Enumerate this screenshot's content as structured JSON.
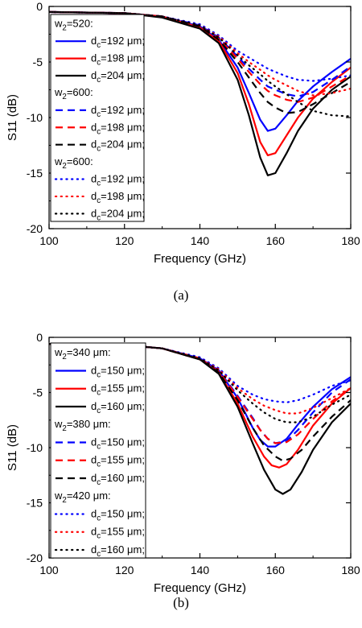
{
  "chart_data": [
    {
      "type": "line",
      "caption": "(a)",
      "xlabel": "Frequency (GHz)",
      "ylabel": "S11 (dB)",
      "xlim": [
        100,
        180
      ],
      "ylim": [
        -20,
        0
      ],
      "xticks": [
        100,
        120,
        140,
        160,
        180
      ],
      "yticks": [
        0,
        -5,
        -10,
        -15,
        -20
      ],
      "grid": false,
      "legend_position": "left",
      "legend_groups": [
        {
          "title": "w2=520:",
          "title_main": "w",
          "title_sub": "2",
          "title_rest": "=520:"
        },
        {
          "title": "w2=600:",
          "title_main": "w",
          "title_sub": "2",
          "title_rest": "=600:"
        },
        {
          "title": "w2=600:",
          "title_main": "w",
          "title_sub": "2",
          "title_rest": "=600:"
        }
      ],
      "series": [
        {
          "name": "dc=192 μm;",
          "label_main": "d",
          "label_sub": "c",
          "label_rest": "=192 μm;",
          "group": 0,
          "color": "#0000ff",
          "dash": "solid",
          "x": [
            100,
            120,
            130,
            140,
            145,
            150,
            153,
            156,
            158,
            160,
            163,
            166,
            170,
            175,
            180
          ],
          "y": [
            -0.5,
            -0.6,
            -0.9,
            -1.8,
            -3.0,
            -5.5,
            -7.8,
            -10.2,
            -11.2,
            -11.0,
            -9.8,
            -8.5,
            -7.2,
            -5.9,
            -4.7
          ]
        },
        {
          "name": "dc=198 μm;",
          "label_main": "d",
          "label_sub": "c",
          "label_rest": "=198 μm;",
          "group": 0,
          "color": "#ff0000",
          "dash": "solid",
          "x": [
            100,
            120,
            130,
            140,
            145,
            150,
            153,
            156,
            158,
            160,
            163,
            166,
            170,
            175,
            180
          ],
          "y": [
            -0.5,
            -0.6,
            -0.9,
            -1.9,
            -3.1,
            -6.0,
            -8.8,
            -12.2,
            -13.4,
            -13.2,
            -11.6,
            -10.0,
            -8.3,
            -6.8,
            -5.5
          ]
        },
        {
          "name": "dc=204 μm;",
          "label_main": "d",
          "label_sub": "c",
          "label_rest": "=204 μm;",
          "group": 0,
          "color": "#000000",
          "dash": "solid",
          "x": [
            100,
            120,
            130,
            140,
            145,
            150,
            153,
            156,
            158,
            160,
            163,
            166,
            170,
            175,
            180
          ],
          "y": [
            -0.5,
            -0.6,
            -1.0,
            -2.0,
            -3.3,
            -6.6,
            -9.8,
            -13.6,
            -15.2,
            -15.0,
            -13.2,
            -11.2,
            -9.2,
            -7.5,
            -6.3
          ]
        },
        {
          "name": "dc=192 μm;",
          "label_main": "d",
          "label_sub": "c",
          "label_rest": "=192 μm;",
          "group": 1,
          "color": "#0000ff",
          "dash": "dashed",
          "x": [
            100,
            120,
            130,
            140,
            145,
            150,
            153,
            156,
            158,
            160,
            163,
            166,
            170,
            175,
            180
          ],
          "y": [
            -0.5,
            -0.6,
            -0.9,
            -1.7,
            -2.8,
            -4.5,
            -5.6,
            -6.6,
            -7.2,
            -7.5,
            -7.9,
            -8.1,
            -7.7,
            -6.6,
            -5.4
          ]
        },
        {
          "name": "dc=198 μm;",
          "label_main": "d",
          "label_sub": "c",
          "label_rest": "=198 μm;",
          "group": 1,
          "color": "#ff0000",
          "dash": "dashed",
          "x": [
            100,
            120,
            130,
            140,
            145,
            150,
            153,
            156,
            158,
            160,
            163,
            166,
            170,
            175,
            180
          ],
          "y": [
            -0.5,
            -0.6,
            -0.9,
            -1.8,
            -2.9,
            -4.7,
            -5.9,
            -7.0,
            -7.6,
            -8.0,
            -8.4,
            -8.6,
            -8.2,
            -7.2,
            -6.2
          ]
        },
        {
          "name": "dc=204 μm;",
          "label_main": "d",
          "label_sub": "c",
          "label_rest": "=204 μm;",
          "group": 1,
          "color": "#000000",
          "dash": "dashed",
          "x": [
            100,
            120,
            130,
            140,
            145,
            150,
            153,
            156,
            158,
            160,
            163,
            166,
            170,
            175,
            180
          ],
          "y": [
            -0.5,
            -0.6,
            -0.9,
            -1.8,
            -3.0,
            -5.0,
            -6.4,
            -7.8,
            -8.6,
            -9.1,
            -9.6,
            -9.5,
            -8.8,
            -7.8,
            -6.8
          ]
        },
        {
          "name": "dc=192 μm;",
          "label_main": "d",
          "label_sub": "c",
          "label_rest": "=192 μm;",
          "group": 2,
          "color": "#0000ff",
          "dash": "dotted",
          "x": [
            100,
            120,
            130,
            140,
            145,
            150,
            153,
            156,
            158,
            160,
            163,
            166,
            170,
            175,
            180
          ],
          "y": [
            -0.5,
            -0.6,
            -0.9,
            -1.6,
            -2.6,
            -4.0,
            -4.6,
            -5.2,
            -5.6,
            -5.9,
            -6.3,
            -6.6,
            -6.7,
            -6.5,
            -6.2
          ]
        },
        {
          "name": "dc=198 μm;",
          "label_main": "d",
          "label_sub": "c",
          "label_rest": "=198 μm;",
          "group": 2,
          "color": "#ff0000",
          "dash": "dotted",
          "x": [
            100,
            120,
            130,
            140,
            145,
            150,
            153,
            156,
            158,
            160,
            163,
            166,
            170,
            175,
            180
          ],
          "y": [
            -0.5,
            -0.6,
            -0.9,
            -1.7,
            -2.7,
            -4.2,
            -5.0,
            -5.7,
            -6.2,
            -6.6,
            -7.1,
            -7.6,
            -8.0,
            -7.8,
            -7.4
          ]
        },
        {
          "name": "dc=204 μm;",
          "label_main": "d",
          "label_sub": "c",
          "label_rest": "=204 μm;",
          "group": 2,
          "color": "#000000",
          "dash": "dotted",
          "x": [
            100,
            120,
            130,
            140,
            145,
            150,
            153,
            156,
            158,
            160,
            163,
            166,
            170,
            175,
            180
          ],
          "y": [
            -0.5,
            -0.6,
            -0.9,
            -1.7,
            -2.8,
            -4.4,
            -5.3,
            -6.1,
            -6.7,
            -7.2,
            -7.9,
            -8.6,
            -9.4,
            -9.8,
            -9.9
          ]
        }
      ]
    },
    {
      "type": "line",
      "caption": "(b)",
      "xlabel": "Frequency (GHz)",
      "ylabel": "S11 (dB)",
      "xlim": [
        100,
        180
      ],
      "ylim": [
        -20,
        0
      ],
      "xticks": [
        100,
        120,
        140,
        160,
        180
      ],
      "yticks": [
        0,
        -5,
        -10,
        -15,
        -20
      ],
      "grid": false,
      "legend_position": "left",
      "legend_groups": [
        {
          "title": "w2=340 μm:",
          "title_main": "w",
          "title_sub": "2",
          "title_rest": "=340 μm:"
        },
        {
          "title": "w2=380 μm:",
          "title_main": "w",
          "title_sub": "2",
          "title_rest": "=380 μm:"
        },
        {
          "title": "w2=420 μm:",
          "title_main": "w",
          "title_sub": "2",
          "title_rest": "=420 μm:"
        }
      ],
      "series": [
        {
          "name": "dc=150 μm;",
          "label_main": "d",
          "label_sub": "c",
          "label_rest": "=150 μm;",
          "group": 0,
          "color": "#0000ff",
          "dash": "solid",
          "x": [
            100,
            120,
            130,
            140,
            145,
            150,
            154,
            156,
            158,
            160,
            163,
            166,
            170,
            175,
            180
          ],
          "y": [
            -0.6,
            -0.7,
            -1.0,
            -1.9,
            -3.0,
            -5.5,
            -8.2,
            -9.3,
            -9.9,
            -9.9,
            -9.2,
            -7.9,
            -6.3,
            -4.7,
            -3.6
          ]
        },
        {
          "name": "dc=155 μm;",
          "label_main": "d",
          "label_sub": "c",
          "label_rest": "=155 μm;",
          "group": 0,
          "color": "#ff0000",
          "dash": "solid",
          "x": [
            100,
            120,
            130,
            140,
            145,
            150,
            154,
            157,
            159,
            161,
            163,
            166,
            170,
            175,
            180
          ],
          "y": [
            -0.6,
            -0.7,
            -1.0,
            -2.0,
            -3.2,
            -6.0,
            -9.0,
            -10.8,
            -11.6,
            -11.8,
            -11.5,
            -10.2,
            -8.0,
            -6.0,
            -4.6
          ]
        },
        {
          "name": "dc=160 μm;",
          "label_main": "d",
          "label_sub": "c",
          "label_rest": "=160 μm;",
          "group": 0,
          "color": "#000000",
          "dash": "solid",
          "x": [
            100,
            120,
            130,
            140,
            145,
            150,
            154,
            157,
            160,
            162,
            164,
            167,
            170,
            175,
            180
          ],
          "y": [
            -0.6,
            -0.7,
            -1.0,
            -2.0,
            -3.3,
            -6.3,
            -9.6,
            -12.0,
            -13.8,
            -14.2,
            -13.8,
            -12.2,
            -10.2,
            -7.7,
            -6.0
          ]
        },
        {
          "name": "dc=150 μm;",
          "label_main": "d",
          "label_sub": "c",
          "label_rest": "=150 μm;",
          "group": 1,
          "color": "#0000ff",
          "dash": "dashed",
          "x": [
            100,
            120,
            130,
            140,
            145,
            150,
            154,
            156,
            158,
            160,
            163,
            166,
            170,
            175,
            180
          ],
          "y": [
            -0.6,
            -0.7,
            -1.0,
            -1.9,
            -3.0,
            -5.3,
            -7.3,
            -8.4,
            -9.2,
            -9.6,
            -9.4,
            -8.4,
            -6.8,
            -5.0,
            -3.8
          ]
        },
        {
          "name": "dc=155 μm;",
          "label_main": "d",
          "label_sub": "c",
          "label_rest": "=155 μm;",
          "group": 1,
          "color": "#ff0000",
          "dash": "dashed",
          "x": [
            100,
            120,
            130,
            140,
            145,
            150,
            154,
            156,
            158,
            160,
            163,
            166,
            170,
            175,
            180
          ],
          "y": [
            -0.6,
            -0.7,
            -1.0,
            -1.9,
            -3.1,
            -5.4,
            -7.4,
            -8.4,
            -9.2,
            -9.6,
            -9.5,
            -8.8,
            -7.4,
            -5.8,
            -4.6
          ]
        },
        {
          "name": "dc=160 μm;",
          "label_main": "d",
          "label_sub": "c",
          "label_rest": "=160 μm;",
          "group": 1,
          "color": "#000000",
          "dash": "dashed",
          "x": [
            100,
            120,
            130,
            140,
            145,
            150,
            154,
            157,
            160,
            162,
            164,
            167,
            170,
            175,
            180
          ],
          "y": [
            -0.6,
            -0.7,
            -1.0,
            -2.0,
            -3.2,
            -5.7,
            -8.2,
            -9.8,
            -10.8,
            -11.2,
            -11.0,
            -10.2,
            -9.0,
            -7.2,
            -5.7
          ]
        },
        {
          "name": "dc=150 μm;",
          "label_main": "d",
          "label_sub": "c",
          "label_rest": "=150 μm;",
          "group": 2,
          "color": "#0000ff",
          "dash": "dotted",
          "x": [
            100,
            120,
            130,
            140,
            145,
            150,
            154,
            157,
            160,
            163,
            166,
            170,
            175,
            180
          ],
          "y": [
            -0.6,
            -0.7,
            -1.0,
            -1.8,
            -2.8,
            -4.4,
            -5.2,
            -5.6,
            -5.8,
            -5.9,
            -5.7,
            -5.2,
            -4.4,
            -3.9
          ]
        },
        {
          "name": "dc=155 μm;",
          "label_main": "d",
          "label_sub": "c",
          "label_rest": "=155 μm;",
          "group": 2,
          "color": "#ff0000",
          "dash": "dotted",
          "x": [
            100,
            120,
            130,
            140,
            145,
            150,
            154,
            157,
            160,
            163,
            166,
            170,
            175,
            180
          ],
          "y": [
            -0.6,
            -0.7,
            -1.0,
            -1.9,
            -2.9,
            -4.6,
            -5.6,
            -6.2,
            -6.6,
            -6.9,
            -6.9,
            -6.4,
            -5.5,
            -4.6
          ]
        },
        {
          "name": "dc=160 μm;",
          "label_main": "d",
          "label_sub": "c",
          "label_rest": "=160 μm;",
          "group": 2,
          "color": "#000000",
          "dash": "dotted",
          "x": [
            100,
            120,
            130,
            140,
            145,
            150,
            154,
            157,
            160,
            163,
            166,
            170,
            175,
            180
          ],
          "y": [
            -0.6,
            -0.7,
            -1.0,
            -1.9,
            -3.0,
            -4.8,
            -6.0,
            -6.8,
            -7.4,
            -7.7,
            -7.7,
            -7.2,
            -6.1,
            -5.2
          ]
        }
      ]
    }
  ]
}
